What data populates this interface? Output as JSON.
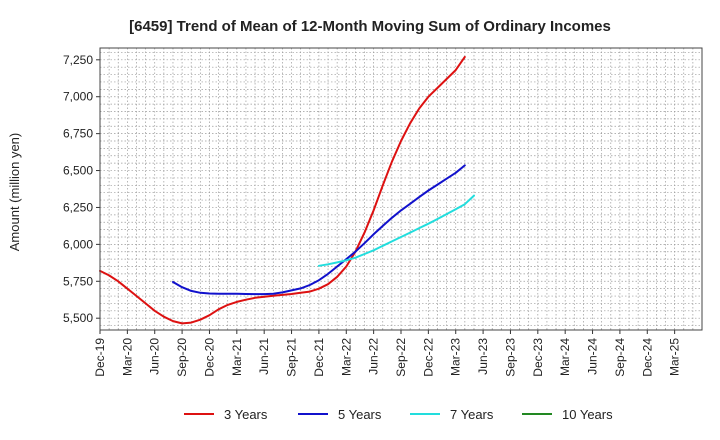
{
  "chart_data": {
    "type": "line",
    "title": "[6459]  Trend of Mean of 12-Month Moving Sum of Ordinary Incomes",
    "xlabel": "",
    "ylabel": "Amount (million yen)",
    "ylim": [
      5420,
      7330
    ],
    "yticks": [
      5500,
      5750,
      6000,
      6250,
      6500,
      6750,
      7000,
      7250
    ],
    "ytick_labels": [
      "5,500",
      "5,750",
      "6,000",
      "6,250",
      "6,500",
      "6,750",
      "7,000",
      "7,250"
    ],
    "xtick_labels": [
      "Dec-19",
      "Mar-20",
      "Jun-20",
      "Sep-20",
      "Dec-20",
      "Mar-21",
      "Jun-21",
      "Sep-21",
      "Dec-21",
      "Mar-22",
      "Jun-22",
      "Sep-22",
      "Dec-22",
      "Mar-23",
      "Jun-23",
      "Sep-23",
      "Dec-23",
      "Mar-24",
      "Jun-24",
      "Sep-24",
      "Dec-24",
      "Mar-25"
    ],
    "grid": true,
    "legend_position": "bottom",
    "series": [
      {
        "name": "3 Years",
        "color": "#dd1111",
        "start_index": 0,
        "values": [
          5820,
          5790,
          5750,
          5700,
          5650,
          5600,
          5550,
          5510,
          5480,
          5465,
          5470,
          5490,
          5520,
          5560,
          5590,
          5610,
          5625,
          5638,
          5645,
          5652,
          5658,
          5664,
          5672,
          5680,
          5700,
          5730,
          5780,
          5850,
          5950,
          6080,
          6230,
          6400,
          6560,
          6700,
          6820,
          6920,
          7000,
          7060,
          7120,
          7180,
          7270
        ]
      },
      {
        "name": "5 Years",
        "color": "#1111cc",
        "start_index": 8,
        "values": [
          5745,
          5710,
          5685,
          5672,
          5667,
          5665,
          5665,
          5665,
          5664,
          5663,
          5663,
          5666,
          5675,
          5688,
          5702,
          5725,
          5757,
          5800,
          5850,
          5900,
          5950,
          6008,
          6068,
          6125,
          6180,
          6230,
          6275,
          6320,
          6365,
          6405,
          6445,
          6485,
          6535
        ]
      },
      {
        "name": "7 Years",
        "color": "#22dddd",
        "start_index": 24,
        "values": [
          5855,
          5865,
          5878,
          5892,
          5910,
          5935,
          5960,
          5990,
          6020,
          6050,
          6080,
          6110,
          6140,
          6172,
          6205,
          6238,
          6272,
          6330
        ]
      },
      {
        "name": "10 Years",
        "color": "#228822",
        "start_index": 0,
        "values": []
      }
    ]
  }
}
